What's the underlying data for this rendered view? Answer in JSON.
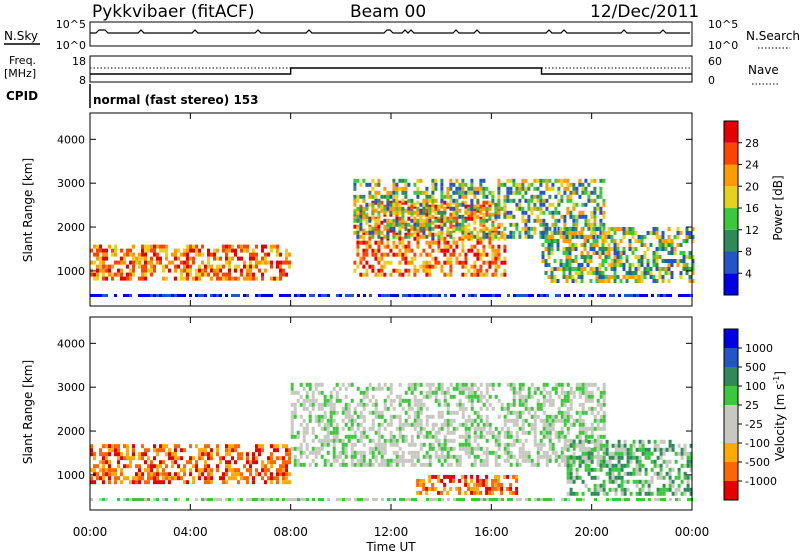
{
  "header": {
    "station": "Pykkvibaer (fitACF)",
    "beam": "Beam 00",
    "date": "12/Dec/2011"
  },
  "top_panels": {
    "nsky": {
      "label": "N.Sky",
      "ticks": [
        "10^5",
        "10^0"
      ]
    },
    "nsearch": {
      "label": "N.Search",
      "ticks": [
        "10^5",
        "10^0"
      ]
    },
    "freq": {
      "label_line1": "Freq.",
      "label_line2": "[MHz]",
      "ticks": [
        "18",
        "8"
      ]
    },
    "nave": {
      "label": "Nave",
      "ticks": [
        "60",
        "0"
      ]
    },
    "cpid": {
      "label": "CPID",
      "value": "normal (fast stereo) 153"
    }
  },
  "chart_data": [
    {
      "type": "heatmap",
      "name": "power",
      "ylabel": "Slant Range [km]",
      "xlabel": "",
      "xlim": [
        0,
        24
      ],
      "ylim": [
        200,
        4600
      ],
      "yticks": [
        1000,
        2000,
        3000,
        4000
      ],
      "colorbar": {
        "label": "Power [dB]",
        "ticks": [
          "28",
          "24",
          "20",
          "16",
          "12",
          "8",
          "4"
        ],
        "colors": [
          "#0000e6",
          "#2255c8",
          "#2f8a5a",
          "#3cc83c",
          "#e6d21e",
          "#ff9a00",
          "#ff4400",
          "#e60000"
        ]
      },
      "echo_regions": [
        {
          "t": [
            0,
            8
          ],
          "range": [
            800,
            1600
          ],
          "level": "high"
        },
        {
          "t": [
            10.5,
            16.5
          ],
          "range": [
            900,
            2600
          ],
          "level": "high"
        },
        {
          "t": [
            10.5,
            20.5
          ],
          "range": [
            1800,
            3100
          ],
          "level": "medium"
        },
        {
          "t": [
            18,
            24
          ],
          "range": [
            800,
            2000
          ],
          "level": "medium"
        }
      ]
    },
    {
      "type": "heatmap",
      "name": "velocity",
      "ylabel": "Slant Range [km]",
      "xlabel": "Time UT",
      "xlim": [
        0,
        24
      ],
      "ylim": [
        200,
        4600
      ],
      "yticks": [
        1000,
        2000,
        3000,
        4000
      ],
      "xticks": [
        "00:00",
        "04:00",
        "08:00",
        "12:00",
        "16:00",
        "20:00",
        "00:00"
      ],
      "colorbar": {
        "label": "Velocity [m s",
        "unit_sup": "-1",
        "unit_tail": "]",
        "ticks": [
          "1000",
          "500",
          "100",
          "25",
          "-25",
          "-100",
          "-500",
          "-1000"
        ],
        "colors": [
          "#e60000",
          "#ff6600",
          "#ffaa00",
          "#c8c8c0",
          "#c8c8c0",
          "#3cc83c",
          "#2f8a5a",
          "#2255c8",
          "#0000e6"
        ]
      },
      "echo_regions": [
        {
          "t": [
            0,
            8
          ],
          "range": [
            800,
            1700
          ],
          "level": "negative"
        },
        {
          "t": [
            8,
            20.5
          ],
          "range": [
            1200,
            3100
          ],
          "level": "ground-scatter"
        },
        {
          "t": [
            13,
            17
          ],
          "range": [
            600,
            1000
          ],
          "level": "negative"
        },
        {
          "t": [
            19,
            24
          ],
          "range": [
            600,
            1800
          ],
          "level": "positive"
        }
      ]
    }
  ]
}
